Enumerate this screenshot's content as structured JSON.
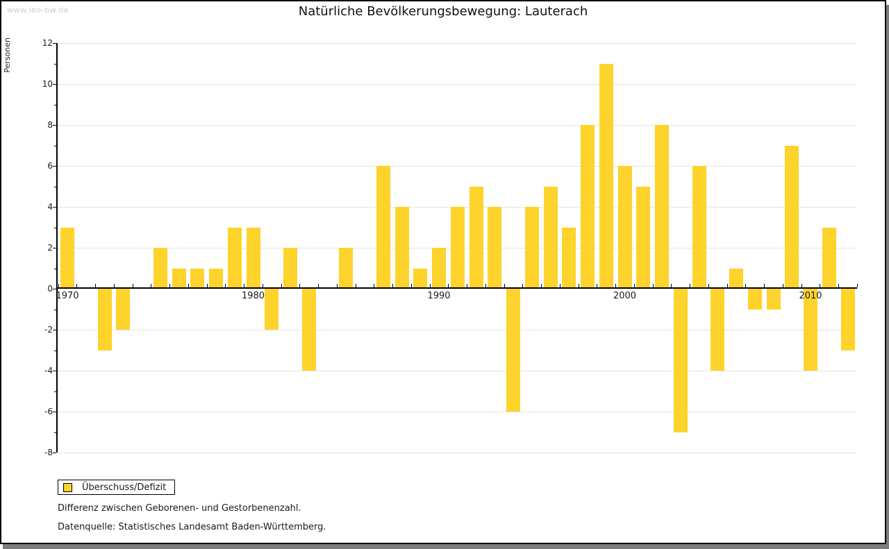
{
  "watermark": "www.leo-bw.de",
  "title": "Natürliche Bevölkerungsbewegung: Lauterach",
  "legend": {
    "label": "Überschuss/Defizit",
    "swatch_color": "#fdd32c"
  },
  "footnotes": {
    "line1": "Differenz zwischen Geborenen- und Gestorbenenzahl.",
    "line2": "Datenquelle: Statistisches Landesamt Baden-Württemberg."
  },
  "colors": {
    "bar": "#fdd32c",
    "gridline": "#e3e3e3",
    "axis": "#000000",
    "shadow": "#7d7d7d",
    "watermark_text": "#cccccc"
  },
  "chart_data": {
    "type": "bar",
    "title": "Natürliche Bevölkerungsbewegung: Lauterach",
    "xlabel": "",
    "ylabel": "Personen",
    "ylim": [
      -8,
      12
    ],
    "ytick_step": 2,
    "grid": true,
    "legend_position": "bottom-left",
    "series_name": "Überschuss/Defizit",
    "labeled_years": [
      1970,
      1980,
      1990,
      2000,
      2010
    ],
    "years": [
      1970,
      1971,
      1972,
      1973,
      1974,
      1975,
      1976,
      1977,
      1978,
      1979,
      1980,
      1981,
      1982,
      1983,
      1984,
      1985,
      1986,
      1987,
      1988,
      1989,
      1990,
      1991,
      1992,
      1993,
      1994,
      1995,
      1996,
      1997,
      1998,
      1999,
      2000,
      2001,
      2002,
      2003,
      2004,
      2005,
      2006,
      2007,
      2008,
      2009,
      2010,
      2011,
      2012
    ],
    "values": [
      3,
      0,
      -3,
      -2,
      0,
      2,
      1,
      1,
      1,
      3,
      3,
      -2,
      2,
      -4,
      0,
      2,
      0,
      6,
      4,
      1,
      2,
      4,
      5,
      4,
      -6,
      4,
      5,
      3,
      8,
      11,
      6,
      5,
      8,
      -7,
      6,
      -4,
      1,
      -1,
      -1,
      7,
      -4,
      3,
      -3
    ]
  }
}
